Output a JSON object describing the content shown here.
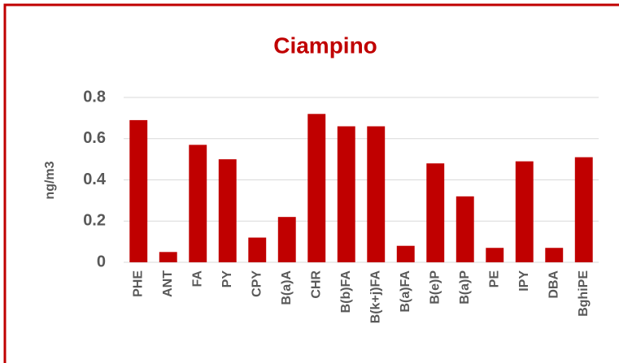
{
  "chart_data": {
    "type": "bar",
    "title": "Ciampino",
    "y_label": "ng/m3",
    "categories": [
      "PHE",
      "ANT",
      "FA",
      "PY",
      "CPY",
      "B(a)A",
      "CHR",
      "B(b)FA",
      "B(k+j)FA",
      "B(a)FA",
      "B(e)P",
      "B(a)P",
      "PE",
      "IPY",
      "DBA",
      "BghiPE"
    ],
    "values": [
      0.69,
      0.05,
      0.57,
      0.5,
      0.12,
      0.22,
      0.72,
      0.66,
      0.66,
      0.08,
      0.48,
      0.32,
      0.07,
      0.49,
      0.07,
      0.51
    ],
    "color": "#c00000",
    "ylim": [
      0,
      0.8
    ],
    "yticks": [
      0,
      0.2,
      0.4,
      0.6,
      0.8
    ],
    "grid": true
  }
}
